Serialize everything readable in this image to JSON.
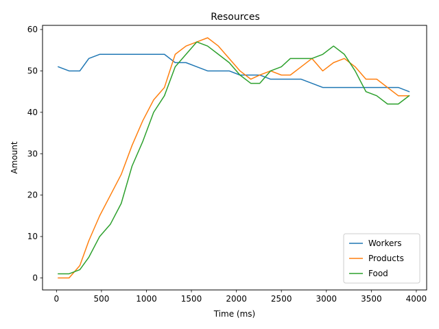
{
  "chart_data": {
    "type": "line",
    "title": "Resources",
    "xlabel": "Time (ms)",
    "ylabel": "Amount",
    "xlim": [
      -155,
      4115
    ],
    "ylim": [
      -2.9,
      61
    ],
    "xticks": [
      0,
      500,
      1000,
      1500,
      2000,
      2500,
      3000,
      3500,
      4000
    ],
    "yticks": [
      0,
      10,
      20,
      30,
      40,
      50,
      60
    ],
    "grid": false,
    "legend_position": "bottom-right",
    "series": [
      {
        "name": "Workers",
        "color": "#1f77b4",
        "x": [
          20,
          140,
          260,
          360,
          480,
          600,
          720,
          840,
          960,
          1080,
          1200,
          1320,
          1440,
          1560,
          1680,
          1800,
          1920,
          2040,
          2160,
          2260,
          2380,
          2500,
          2600,
          2720,
          2840,
          2960,
          3080,
          3200,
          3320,
          3440,
          3560,
          3680,
          3800,
          3920
        ],
        "y": [
          51,
          50,
          50,
          53,
          54,
          54,
          54,
          54,
          54,
          54,
          54,
          52,
          52,
          51,
          50,
          50,
          50,
          49,
          49,
          49,
          48,
          48,
          48,
          48,
          47,
          46,
          46,
          46,
          46,
          46,
          46,
          46,
          46,
          45
        ]
      },
      {
        "name": "Products",
        "color": "#ff7f0e",
        "x": [
          20,
          140,
          260,
          360,
          480,
          600,
          720,
          840,
          960,
          1080,
          1200,
          1320,
          1440,
          1560,
          1680,
          1800,
          1920,
          2040,
          2160,
          2260,
          2380,
          2500,
          2600,
          2720,
          2840,
          2960,
          3080,
          3200,
          3320,
          3440,
          3560,
          3680,
          3800,
          3920
        ],
        "y": [
          0,
          0,
          3,
          9,
          15,
          20,
          25,
          32,
          38,
          43,
          46,
          54,
          56,
          57,
          58,
          56,
          53,
          50,
          48,
          49,
          50,
          49,
          49,
          51,
          53,
          50,
          52,
          53,
          51,
          48,
          48,
          46,
          44,
          44
        ]
      },
      {
        "name": "Food",
        "color": "#2ca02c",
        "x": [
          20,
          140,
          260,
          360,
          480,
          600,
          720,
          840,
          960,
          1080,
          1200,
          1320,
          1440,
          1560,
          1680,
          1800,
          1920,
          2040,
          2160,
          2260,
          2380,
          2500,
          2600,
          2720,
          2840,
          2960,
          3080,
          3200,
          3320,
          3440,
          3560,
          3680,
          3800,
          3920
        ],
        "y": [
          1,
          1,
          2,
          5,
          10,
          13,
          18,
          27,
          33,
          40,
          44,
          51,
          54,
          57,
          56,
          54,
          52,
          49,
          47,
          47,
          50,
          51,
          53,
          53,
          53,
          54,
          56,
          54,
          50,
          45,
          44,
          42,
          42,
          44
        ]
      }
    ]
  }
}
